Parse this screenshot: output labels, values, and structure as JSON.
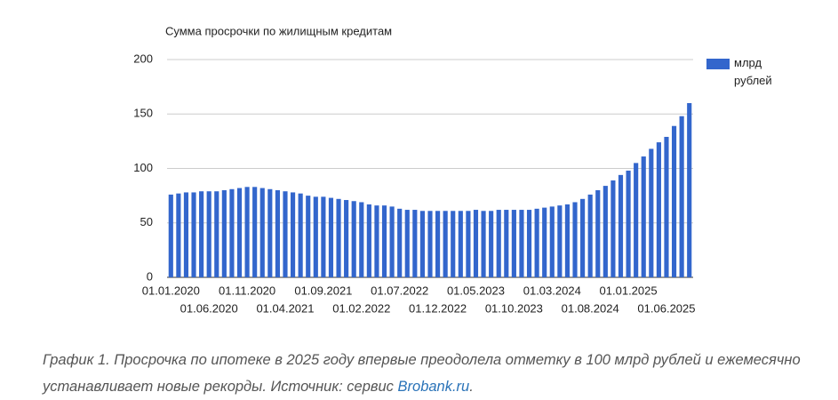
{
  "chart_data": {
    "type": "bar",
    "title": "Сумма просрочки по жилищным кредитам",
    "categories": [
      "01.01.2020",
      null,
      null,
      null,
      null,
      "01.06.2020",
      null,
      null,
      null,
      null,
      "01.11.2020",
      null,
      null,
      null,
      null,
      "01.04.2021",
      null,
      null,
      null,
      null,
      "01.09.2021",
      null,
      null,
      null,
      null,
      "01.02.2022",
      null,
      null,
      null,
      null,
      "01.07.2022",
      null,
      null,
      null,
      null,
      "01.12.2022",
      null,
      null,
      null,
      null,
      "01.05.2023",
      null,
      null,
      null,
      null,
      "01.10.2023",
      null,
      null,
      null,
      null,
      "01.03.2024",
      null,
      null,
      null,
      null,
      "01.08.2024",
      null,
      null,
      null,
      null,
      "01.01.2025",
      null,
      null,
      null,
      null,
      "01.06.2025",
      null,
      null,
      null
    ],
    "series": [
      {
        "name": "млрд рублей",
        "color": "#3366cc",
        "values": [
          76,
          77,
          78,
          78,
          79,
          79,
          79,
          80,
          81,
          82,
          83,
          83,
          82,
          81,
          80,
          79,
          78,
          77,
          75,
          74,
          74,
          73,
          72,
          71,
          70,
          69,
          67,
          66,
          66,
          65,
          63,
          62,
          62,
          61,
          61,
          61,
          61,
          61,
          61,
          61,
          62,
          61,
          61,
          62,
          62,
          62,
          62,
          62,
          63,
          64,
          65,
          66,
          67,
          69,
          72,
          76,
          80,
          84,
          89,
          94,
          98,
          105,
          111,
          118,
          124,
          129,
          139,
          148,
          160
        ]
      }
    ],
    "ylim": [
      0,
      200
    ],
    "yticks": [
      0,
      50,
      100,
      150,
      200
    ],
    "grid": true,
    "legend": "right"
  },
  "caption": {
    "text": "График 1. Просрочка по ипотеке в 2025 году впервые преодолела отметку в 100 млрд рублей и ежемесячно устанавливает новые рекорды. Источник: сервис ",
    "link": "Brobank.ru",
    "end": "."
  }
}
